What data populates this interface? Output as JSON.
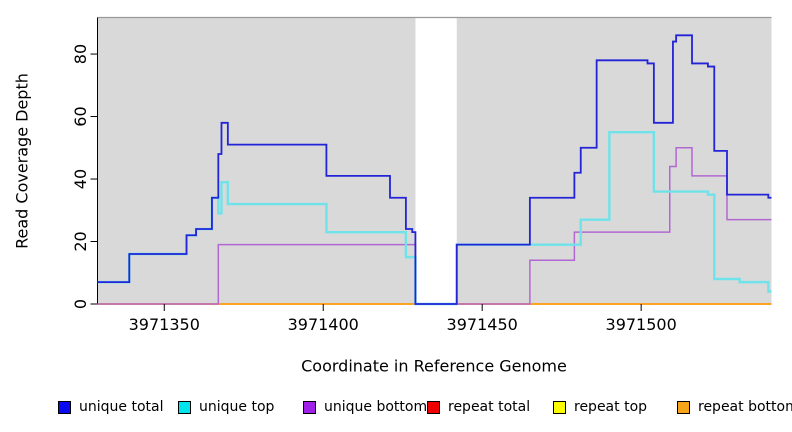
{
  "figure": {
    "x_axis_title": "Coordinate in Reference Genome",
    "y_axis_title": "Read Coverage Depth",
    "panel_color": "#d9d9d9",
    "panel_top_border_color": "#999999",
    "axis_color": "#000000",
    "masked_band_color": "#ffffff"
  },
  "legend": [
    {
      "label": "unique total",
      "swatch_color": "#0a0af0"
    },
    {
      "label": "unique top",
      "swatch_color": "#00e4ee"
    },
    {
      "label": "unique bottom",
      "swatch_color": "#a020e8"
    },
    {
      "label": "repeat total",
      "swatch_color": "#ee0000"
    },
    {
      "label": "repeat top",
      "swatch_color": "#fdfd00"
    },
    {
      "label": "repeat bottom",
      "swatch_color": "#f7a41a"
    }
  ],
  "chart_data": {
    "type": "line",
    "subtype": "step",
    "title": "",
    "xlabel": "Coordinate in Reference Genome",
    "ylabel": "Read Coverage Depth",
    "xlim": [
      3971329,
      3971541
    ],
    "ylim": [
      0,
      91.7
    ],
    "x_ticks": [
      3971350,
      3971400,
      3971450,
      3971500
    ],
    "y_ticks": [
      0,
      20,
      40,
      60,
      80
    ],
    "grid": false,
    "legend_position": "bottom",
    "masked_region": [
      3971429,
      3971442
    ],
    "series": [
      {
        "name": "repeat total",
        "color": "#e03348",
        "width": 1.4,
        "steps": [
          [
            3971329,
            0
          ],
          [
            3971541,
            0
          ]
        ]
      },
      {
        "name": "repeat top",
        "color": "#f2f200",
        "width": 1.4,
        "steps": [
          [
            3971329,
            0
          ],
          [
            3971541,
            0
          ]
        ]
      },
      {
        "name": "repeat bottom",
        "color": "#ff9f1c",
        "width": 1.8,
        "steps": [
          [
            3971329,
            0
          ],
          [
            3971541,
            0
          ]
        ]
      },
      {
        "name": "unique bottom",
        "color": "#b168d2",
        "width": 1.5,
        "steps": [
          [
            3971329,
            0
          ],
          [
            3971367,
            19
          ],
          [
            3971429,
            0
          ],
          [
            3971465,
            14
          ],
          [
            3971479,
            23
          ],
          [
            3971509,
            44
          ],
          [
            3971511,
            50
          ],
          [
            3971516,
            41
          ],
          [
            3971527,
            27
          ],
          [
            3971541,
            27
          ]
        ]
      },
      {
        "name": "unique top",
        "color": "#6fe3e9",
        "width": 2.4,
        "steps": [
          [
            3971329,
            7
          ],
          [
            3971339,
            16
          ],
          [
            3971357,
            22
          ],
          [
            3971360,
            24
          ],
          [
            3971365,
            34
          ],
          [
            3971367,
            29
          ],
          [
            3971368,
            39
          ],
          [
            3971370,
            32
          ],
          [
            3971401,
            23
          ],
          [
            3971426,
            15
          ],
          [
            3971429,
            0
          ],
          [
            3971442,
            19
          ],
          [
            3971481,
            27
          ],
          [
            3971490,
            55
          ],
          [
            3971504,
            36
          ],
          [
            3971521,
            35
          ],
          [
            3971523,
            8
          ],
          [
            3971531,
            7
          ],
          [
            3971540,
            4
          ],
          [
            3971541,
            4
          ]
        ]
      },
      {
        "name": "unique total",
        "color": "#2323d7",
        "width": 1.8,
        "steps": [
          [
            3971329,
            7
          ],
          [
            3971339,
            16
          ],
          [
            3971357,
            22
          ],
          [
            3971360,
            24
          ],
          [
            3971365,
            34
          ],
          [
            3971367,
            48
          ],
          [
            3971368,
            58
          ],
          [
            3971370,
            51
          ],
          [
            3971401,
            41
          ],
          [
            3971421,
            34
          ],
          [
            3971426,
            24
          ],
          [
            3971428,
            23
          ],
          [
            3971429,
            0
          ],
          [
            3971442,
            19
          ],
          [
            3971465,
            34
          ],
          [
            3971479,
            42
          ],
          [
            3971481,
            50
          ],
          [
            3971486,
            78
          ],
          [
            3971502,
            77
          ],
          [
            3971504,
            58
          ],
          [
            3971510,
            84
          ],
          [
            3971511,
            86
          ],
          [
            3971516,
            77
          ],
          [
            3971521,
            76
          ],
          [
            3971523,
            49
          ],
          [
            3971527,
            35
          ],
          [
            3971540,
            34
          ],
          [
            3971541,
            34
          ]
        ]
      }
    ]
  }
}
